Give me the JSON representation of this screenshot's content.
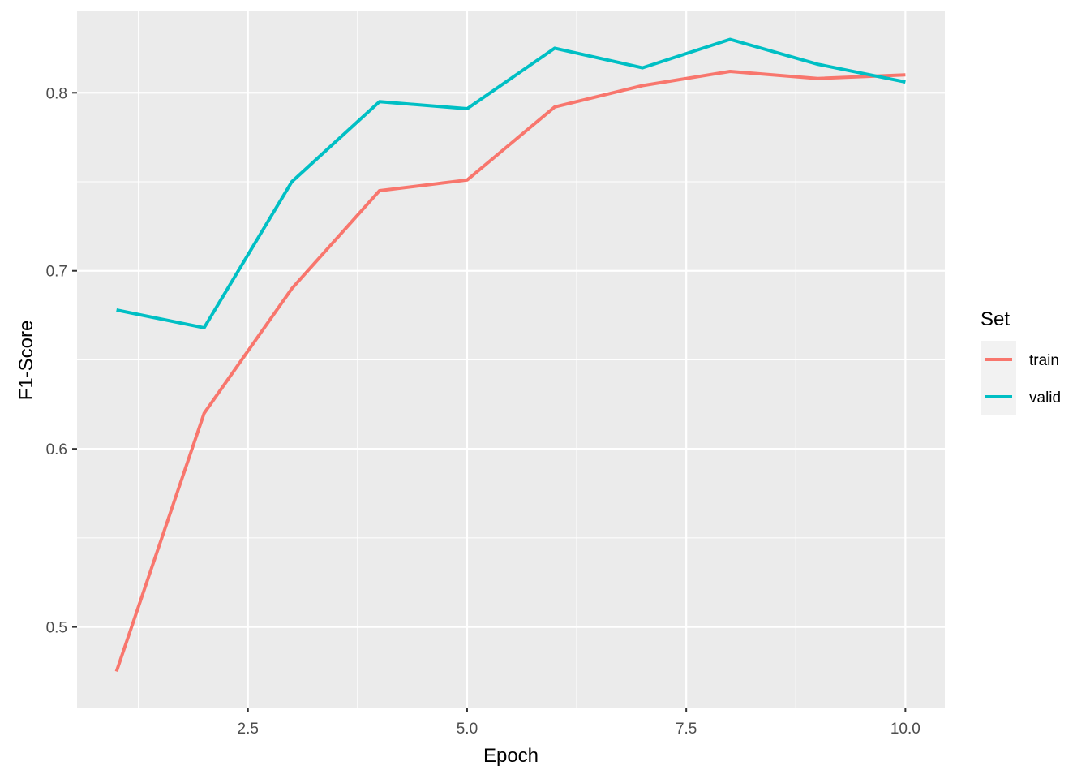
{
  "chart_data": {
    "type": "line",
    "xlabel": "Epoch",
    "ylabel": "F1-Score",
    "xlim": [
      0.55,
      10.45
    ],
    "ylim": [
      0.4547,
      0.8457
    ],
    "x_ticks": [
      2.5,
      5.0,
      7.5,
      10.0
    ],
    "x_tick_labels": [
      "2.5",
      "5.0",
      "7.5",
      "10.0"
    ],
    "x_minor_ticks": [
      1.25,
      3.75,
      6.25,
      8.75
    ],
    "y_ticks": [
      0.5,
      0.6,
      0.7,
      0.8
    ],
    "y_tick_labels": [
      "0.5",
      "0.6",
      "0.7",
      "0.8"
    ],
    "y_minor_ticks": [
      0.55,
      0.65,
      0.75
    ],
    "grid": true,
    "panel_background": "#ebebeb",
    "legend": {
      "title": "Set",
      "position": "right"
    },
    "x": [
      1,
      2,
      3,
      4,
      5,
      6,
      7,
      8,
      9,
      10
    ],
    "series": [
      {
        "name": "train",
        "color": "#f8766d",
        "values": [
          0.475,
          0.62,
          0.69,
          0.745,
          0.751,
          0.792,
          0.804,
          0.812,
          0.808,
          0.81
        ]
      },
      {
        "name": "valid",
        "color": "#00bfc4",
        "values": [
          0.678,
          0.668,
          0.75,
          0.795,
          0.791,
          0.825,
          0.814,
          0.83,
          0.816,
          0.806
        ]
      }
    ]
  }
}
